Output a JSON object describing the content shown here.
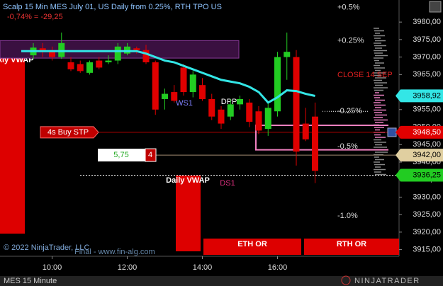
{
  "chart_data": {
    "type": "candlestick",
    "title": "Scalp 15 Min MES July 01, US Daily from 0.25%, RTH TPO US",
    "subtitle": "-0,74% = -29,25",
    "categories": [
      null,
      null,
      "10:00",
      null,
      null,
      null,
      null,
      null,
      null,
      null,
      "12:00",
      null,
      null,
      null,
      null,
      null,
      null,
      null,
      "14:00",
      null,
      null,
      null,
      null,
      null,
      null,
      null,
      "16:00",
      null,
      null,
      null,
      null
    ],
    "open": [
      3970.5,
      3972.5,
      3971.5,
      3970,
      3968.5,
      3968,
      3965.5,
      3969,
      3968.5,
      3969,
      3971,
      3972.5,
      3972,
      3968.5,
      3958,
      3960,
      3967,
      3960,
      3962,
      3958,
      3955,
      3953,
      3956.5,
      3957,
      3954.5,
      3949.5,
      3954.5,
      3970,
      3970,
      3951,
      3953
    ],
    "high": [
      3974,
      3974,
      3973,
      3977,
      3970,
      3969,
      3969,
      3970,
      3970.5,
      3974,
      3974,
      3973,
      3973.5,
      3969,
      3961,
      3962,
      3968,
      3966,
      3964,
      3959.5,
      3956,
      3958,
      3959,
      3958,
      3956,
      3957,
      3971.5,
      3977,
      3972,
      3955.5,
      3957
    ],
    "low": [
      3969.5,
      3970,
      3969,
      3969.5,
      3966,
      3965.5,
      3965,
      3966.5,
      3968,
      3968,
      3970.5,
      3971,
      3968,
      3953.5,
      3955,
      3957,
      3959,
      3958.5,
      3957.5,
      3952,
      3949.5,
      3952,
      3955,
      3950,
      3948,
      3947.5,
      3953,
      3963.5,
      3939,
      3946,
      3934
    ],
    "close": [
      3972.7,
      3971.5,
      3970,
      3974,
      3966.5,
      3966,
      3968.5,
      3967,
      3969,
      3973,
      3973,
      3972,
      3968.5,
      3955,
      3959.5,
      3957.5,
      3960,
      3965,
      3958,
      3953,
      3951,
      3956.5,
      3958,
      3951.5,
      3949,
      3955.5,
      3970,
      3971.5,
      3943,
      3946.5,
      3937.5
    ],
    "up_color": "#22cc22",
    "down_color": "#e00000",
    "vwap": {
      "color": "#33e6e6",
      "values": [
        3971.7,
        3971.7,
        3971.7,
        3971.7,
        3971.7,
        3971.7,
        3971.7,
        3971.7,
        3971.7,
        3971.7,
        3971.7,
        3971.7,
        3971,
        3970,
        3969,
        3968.5,
        3967.5,
        3966.5,
        3965.5,
        3964.5,
        3963.5,
        3963,
        3962.5,
        3961.5,
        3960,
        3957,
        3958.5,
        3960.5,
        3960.3,
        3959.5,
        3958.9
      ]
    },
    "zone": [
      3969.7,
      3974.7
    ],
    "bracket": [
      3950.5,
      3943.5
    ],
    "ylim": [
      3913.1,
      3986.3
    ],
    "yticks": [
      {
        "value": 3915,
        "label": "3915,00"
      },
      {
        "value": 3920,
        "label": "3920,00"
      },
      {
        "value": 3925,
        "label": "3925,00"
      },
      {
        "value": 3930,
        "label": "3930,00"
      },
      {
        "value": 3935,
        "label": "3935,00"
      },
      {
        "value": 3940,
        "label": "3940,00"
      },
      {
        "value": 3945,
        "label": "3945,00"
      },
      {
        "value": 3950,
        "label": "3950,00"
      },
      {
        "value": 3955,
        "label": "3955,00"
      },
      {
        "value": 3965,
        "label": "3965,00"
      },
      {
        "value": 3970,
        "label": "3970,00"
      },
      {
        "value": 3975,
        "label": "3975,00"
      },
      {
        "value": 3980,
        "label": "3980,00"
      }
    ],
    "price_markers": [
      {
        "value": 3958.92,
        "label": "3958,92",
        "color": "#33e6e6"
      },
      {
        "value": 3948.5,
        "label": "3948,50",
        "color": "#e00000"
      },
      {
        "value": 3942,
        "label": "3942,00",
        "color": "#e0cfa0"
      },
      {
        "value": 3936.25,
        "label": "3936,25",
        "color": "#22cc22"
      }
    ],
    "pct_levels": [
      {
        "label": "+0.5%",
        "value": 3984.2
      },
      {
        "label": "+0.25%",
        "value": 3974.7
      },
      {
        "label": "CLOSE 14 SEP",
        "value": 3964.8
      },
      {
        "label": "-0.25%",
        "value": 3954.5
      },
      {
        "label": "-0.5%",
        "value": 3944.4
      },
      {
        "label": "-1.0%",
        "value": 3924.6
      }
    ],
    "order": {
      "label": "4s Buy STP",
      "offset": "5,75",
      "quantity": 4
    },
    "pivots": {
      "ws1": "WS1",
      "dpp": "DPP",
      "ds1": "DS1"
    },
    "vwap_labels": {
      "weekly": "Wkly VWAP",
      "daily": "Daily VWAP"
    },
    "ranges": {
      "eth": "ETH OR",
      "rth": "RTH OR"
    },
    "copyright": "© 2022 NinjaTrader, LLC",
    "watermark": "Final - www.fin-alg.com",
    "instrument": "MES 15 Minute",
    "brand": "NINJATRADER"
  }
}
